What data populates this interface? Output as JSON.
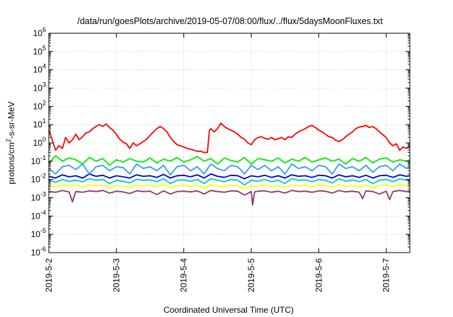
{
  "chart_data": {
    "type": "line",
    "title": "/data/run/goesPlots/archive/2019-05-07/08:00/flux/../flux/5daysMoonFluxes.txt",
    "xlabel": "Coordinated Universal Time (UTC)",
    "ylabel_base": "protons/cm",
    "ylabel_sup": "2",
    "ylabel_rest": "-s-sr-MeV",
    "x_tick_labels": [
      "2019-5-2",
      "2019-5-3",
      "2019-5-4",
      "2019-5-5",
      "2019-5-6",
      "2019-5-7"
    ],
    "y_scale": "log",
    "ylim": [
      1e-06,
      1000000.0
    ],
    "y_tick_exponents": [
      -6,
      -5,
      -4,
      -3,
      -2,
      -1,
      0,
      1,
      2,
      3,
      4,
      5,
      6
    ],
    "y_tick_base": "10",
    "xlim_days": [
      0,
      5.35
    ],
    "grid": true,
    "series": [
      {
        "color": "#ff0000",
        "x": [
          0,
          0.05,
          0.1,
          0.15,
          0.2,
          0.25,
          0.3,
          0.35,
          0.4,
          0.45,
          0.5,
          0.55,
          0.6,
          0.65,
          0.7,
          0.75,
          0.8,
          0.85,
          0.9,
          0.95,
          1.0,
          1.05,
          1.1,
          1.15,
          1.2,
          1.25,
          1.3,
          1.35,
          1.4,
          1.45,
          1.5,
          1.55,
          1.6,
          1.65,
          1.7,
          1.75,
          1.8,
          1.85,
          1.9,
          1.95,
          2.0,
          2.05,
          2.1,
          2.15,
          2.2,
          2.25,
          2.3,
          2.35,
          2.38,
          2.4,
          2.45,
          2.5,
          2.55,
          2.6,
          2.65,
          2.7,
          2.75,
          2.8,
          2.85,
          2.9,
          2.95,
          3.0,
          3.05,
          3.1,
          3.15,
          3.2,
          3.25,
          3.3,
          3.35,
          3.4,
          3.45,
          3.5,
          3.55,
          3.6,
          3.65,
          3.7,
          3.75,
          3.8,
          3.85,
          3.9,
          3.95,
          4.0,
          4.05,
          4.1,
          4.15,
          4.2,
          4.25,
          4.3,
          4.35,
          4.4,
          4.45,
          4.5,
          4.55,
          4.6,
          4.65,
          4.7,
          4.75,
          4.8,
          4.85,
          4.9,
          4.95,
          5.0,
          5.05,
          5.1,
          5.15,
          5.2,
          5.25,
          5.3,
          5.35
        ],
        "y": [
          5,
          1.5,
          0.4,
          0.7,
          0.5,
          2.0,
          1.0,
          1.5,
          3.0,
          1.5,
          2.2,
          3.5,
          4.0,
          6.0,
          8.0,
          10,
          8.0,
          11,
          7.0,
          5.0,
          3.0,
          1.6,
          1.1,
          0.9,
          0.5,
          1.0,
          0.7,
          0.9,
          1.2,
          1.6,
          2.6,
          4.0,
          6.0,
          8.0,
          6.0,
          4.0,
          2.0,
          1.2,
          0.8,
          0.7,
          0.6,
          0.5,
          0.45,
          0.4,
          0.35,
          0.35,
          0.3,
          0.3,
          5.0,
          6.0,
          4.0,
          6.0,
          12,
          8.0,
          6.0,
          5.0,
          4.0,
          3.0,
          2.0,
          1.6,
          1.0,
          0.8,
          1.5,
          2.0,
          2.2,
          1.8,
          1.6,
          2.0,
          1.5,
          1.7,
          2.0,
          1.5,
          2.2,
          2.0,
          3.0,
          4.0,
          5.0,
          6.0,
          8.0,
          9.0,
          7.0,
          5.0,
          4.0,
          3.0,
          2.2,
          2.0,
          1.4,
          1.2,
          1.5,
          2.2,
          3.0,
          4.0,
          6.0,
          7.5,
          8.0,
          9.0,
          7.0,
          8.0,
          6.0,
          4.0,
          2.8,
          2.0,
          1.0,
          0.7,
          0.9,
          0.4,
          0.6,
          0.5,
          0.7
        ]
      },
      {
        "color": "#00ee00",
        "x": [
          0,
          0.1,
          0.2,
          0.3,
          0.4,
          0.5,
          0.6,
          0.7,
          0.8,
          0.9,
          1.0,
          1.1,
          1.2,
          1.3,
          1.4,
          1.5,
          1.6,
          1.7,
          1.8,
          1.9,
          2.0,
          2.1,
          2.2,
          2.3,
          2.4,
          2.5,
          2.6,
          2.7,
          2.8,
          2.9,
          3.0,
          3.1,
          3.2,
          3.3,
          3.4,
          3.5,
          3.6,
          3.7,
          3.8,
          3.9,
          4.0,
          4.1,
          4.2,
          4.3,
          4.4,
          4.5,
          4.6,
          4.7,
          4.8,
          4.9,
          5.0,
          5.1,
          5.2,
          5.3,
          5.35
        ],
        "y": [
          0.08,
          0.2,
          0.1,
          0.15,
          0.12,
          0.07,
          0.16,
          0.1,
          0.14,
          0.06,
          0.12,
          0.09,
          0.14,
          0.1,
          0.09,
          0.15,
          0.08,
          0.13,
          0.1,
          0.16,
          0.09,
          0.12,
          0.18,
          0.1,
          0.14,
          0.07,
          0.15,
          0.11,
          0.09,
          0.16,
          0.07,
          0.14,
          0.12,
          0.1,
          0.15,
          0.08,
          0.13,
          0.1,
          0.16,
          0.09,
          0.12,
          0.15,
          0.1,
          0.13,
          0.07,
          0.14,
          0.1,
          0.16,
          0.08,
          0.13,
          0.15,
          0.09,
          0.12,
          0.1,
          0.12
        ]
      },
      {
        "color": "#3399ff",
        "x": [
          0,
          0.1,
          0.2,
          0.3,
          0.4,
          0.5,
          0.6,
          0.7,
          0.8,
          0.9,
          1.0,
          1.1,
          1.2,
          1.3,
          1.4,
          1.5,
          1.6,
          1.7,
          1.8,
          1.9,
          2.0,
          2.1,
          2.2,
          2.3,
          2.4,
          2.5,
          2.6,
          2.7,
          2.8,
          2.9,
          3.0,
          3.1,
          3.2,
          3.3,
          3.4,
          3.5,
          3.6,
          3.7,
          3.8,
          3.9,
          4.0,
          4.1,
          4.2,
          4.3,
          4.4,
          4.5,
          4.6,
          4.7,
          4.8,
          4.9,
          5.0,
          5.1,
          5.2,
          5.3,
          5.35
        ],
        "y": [
          0.04,
          0.02,
          0.05,
          0.06,
          0.035,
          0.07,
          0.02,
          0.05,
          0.06,
          0.03,
          0.05,
          0.045,
          0.02,
          0.07,
          0.04,
          0.05,
          0.03,
          0.06,
          0.018,
          0.05,
          0.06,
          0.03,
          0.05,
          0.02,
          0.07,
          0.04,
          0.03,
          0.06,
          0.05,
          0.02,
          0.06,
          0.035,
          0.06,
          0.03,
          0.05,
          0.02,
          0.07,
          0.04,
          0.05,
          0.03,
          0.06,
          0.05,
          0.02,
          0.07,
          0.04,
          0.05,
          0.03,
          0.06,
          0.025,
          0.05,
          0.06,
          0.03,
          0.07,
          0.04,
          0.05
        ]
      },
      {
        "color": "#0000cc",
        "x": [
          0,
          0.1,
          0.2,
          0.3,
          0.4,
          0.5,
          0.6,
          0.7,
          0.8,
          0.9,
          1.0,
          1.1,
          1.2,
          1.3,
          1.4,
          1.5,
          1.6,
          1.7,
          1.8,
          1.9,
          2.0,
          2.1,
          2.2,
          2.3,
          2.4,
          2.5,
          2.6,
          2.7,
          2.8,
          2.9,
          3.0,
          3.1,
          3.2,
          3.3,
          3.4,
          3.5,
          3.6,
          3.7,
          3.8,
          3.9,
          4.0,
          4.1,
          4.2,
          4.3,
          4.4,
          4.5,
          4.6,
          4.7,
          4.8,
          4.9,
          5.0,
          5.1,
          5.2,
          5.3,
          5.35
        ],
        "y": [
          0.015,
          0.012,
          0.018,
          0.014,
          0.016,
          0.012,
          0.02,
          0.015,
          0.017,
          0.012,
          0.016,
          0.014,
          0.012,
          0.018,
          0.015,
          0.016,
          0.013,
          0.019,
          0.012,
          0.016,
          0.017,
          0.014,
          0.018,
          0.012,
          0.02,
          0.015,
          0.013,
          0.017,
          0.016,
          0.011,
          0.016,
          0.014,
          0.017,
          0.013,
          0.016,
          0.012,
          0.018,
          0.015,
          0.016,
          0.013,
          0.017,
          0.016,
          0.012,
          0.018,
          0.014,
          0.016,
          0.013,
          0.017,
          0.012,
          0.016,
          0.017,
          0.013,
          0.018,
          0.015,
          0.016
        ]
      },
      {
        "color": "#00cccc",
        "x": [
          0,
          0.1,
          0.2,
          0.3,
          0.4,
          0.5,
          0.6,
          0.7,
          0.8,
          0.9,
          1.0,
          1.1,
          1.2,
          1.3,
          1.4,
          1.5,
          1.6,
          1.7,
          1.8,
          1.9,
          2.0,
          2.1,
          2.2,
          2.3,
          2.4,
          2.5,
          2.6,
          2.7,
          2.8,
          2.9,
          3.0,
          3.1,
          3.2,
          3.3,
          3.4,
          3.5,
          3.6,
          3.7,
          3.8,
          3.9,
          4.0,
          4.1,
          4.2,
          4.3,
          4.4,
          4.5,
          4.6,
          4.7,
          4.8,
          4.9,
          5.0,
          5.1,
          5.2,
          5.3,
          5.35
        ],
        "y": [
          0.009,
          0.007,
          0.01,
          0.008,
          0.009,
          0.0075,
          0.011,
          0.009,
          0.01,
          0.006,
          0.009,
          0.008,
          0.0065,
          0.01,
          0.009,
          0.0095,
          0.0075,
          0.011,
          0.006,
          0.009,
          0.0095,
          0.008,
          0.01,
          0.006,
          0.011,
          0.009,
          0.0075,
          0.01,
          0.009,
          0.005,
          0.009,
          0.008,
          0.01,
          0.0075,
          0.009,
          0.006,
          0.011,
          0.009,
          0.0095,
          0.0075,
          0.01,
          0.009,
          0.0065,
          0.011,
          0.008,
          0.0095,
          0.0075,
          0.01,
          0.006,
          0.009,
          0.01,
          0.0075,
          0.011,
          0.009,
          0.0095
        ]
      },
      {
        "color": "#ffff00",
        "x": [
          0,
          0.1,
          0.2,
          0.3,
          0.4,
          0.5,
          0.6,
          0.7,
          0.8,
          0.9,
          1.0,
          1.1,
          1.2,
          1.3,
          1.4,
          1.5,
          1.6,
          1.7,
          1.8,
          1.9,
          2.0,
          2.1,
          2.2,
          2.3,
          2.4,
          2.5,
          2.6,
          2.7,
          2.8,
          2.9,
          3.0,
          3.1,
          3.2,
          3.3,
          3.4,
          3.5,
          3.6,
          3.7,
          3.8,
          3.9,
          4.0,
          4.1,
          4.2,
          4.3,
          4.4,
          4.5,
          4.6,
          4.7,
          4.8,
          4.9,
          5.0,
          5.1,
          5.2,
          5.3,
          5.35
        ],
        "y": [
          0.0045,
          0.004,
          0.005,
          0.0042,
          0.0048,
          0.0038,
          0.0052,
          0.0044,
          0.005,
          0.0035,
          0.0046,
          0.0042,
          0.0036,
          0.005,
          0.0045,
          0.0048,
          0.004,
          0.0052,
          0.0035,
          0.0046,
          0.0048,
          0.0042,
          0.005,
          0.0034,
          0.0053,
          0.0045,
          0.004,
          0.005,
          0.0046,
          0.003,
          0.0046,
          0.0042,
          0.005,
          0.004,
          0.0046,
          0.0035,
          0.0052,
          0.0045,
          0.0048,
          0.004,
          0.005,
          0.0046,
          0.0036,
          0.0052,
          0.0042,
          0.0048,
          0.004,
          0.005,
          0.0035,
          0.0046,
          0.005,
          0.004,
          0.0052,
          0.0045,
          0.0048
        ]
      },
      {
        "color": "#8e3a6e",
        "x": [
          0,
          0.1,
          0.2,
          0.3,
          0.35,
          0.4,
          0.5,
          0.6,
          0.7,
          0.8,
          0.9,
          1.0,
          1.1,
          1.2,
          1.3,
          1.4,
          1.5,
          1.6,
          1.7,
          1.8,
          1.9,
          2.0,
          2.1,
          2.2,
          2.3,
          2.4,
          2.5,
          2.6,
          2.7,
          2.8,
          2.9,
          3.0,
          3.02,
          3.05,
          3.1,
          3.2,
          3.3,
          3.4,
          3.5,
          3.6,
          3.7,
          3.8,
          3.9,
          4.0,
          4.1,
          4.2,
          4.3,
          4.4,
          4.5,
          4.6,
          4.65,
          4.7,
          4.8,
          4.9,
          5.0,
          5.05,
          5.1,
          5.2,
          5.3,
          5.35
        ],
        "y": [
          0.0022,
          0.002,
          0.0025,
          0.0021,
          0.0006,
          0.0022,
          0.002,
          0.0024,
          0.0022,
          0.0025,
          0.0018,
          0.0023,
          0.0021,
          0.0017,
          0.0024,
          0.0022,
          0.0023,
          0.0015,
          0.0024,
          0.0016,
          0.0022,
          0.0023,
          0.0021,
          0.0024,
          0.0016,
          0.0025,
          0.0022,
          0.002,
          0.0024,
          0.0023,
          0.0014,
          0.0022,
          0.0004,
          0.0021,
          0.0023,
          0.0024,
          0.002,
          0.0023,
          0.0018,
          0.0025,
          0.0022,
          0.0023,
          0.002,
          0.0024,
          0.0023,
          0.0018,
          0.0025,
          0.0021,
          0.0023,
          0.002,
          0.0009,
          0.0024,
          0.0022,
          0.0016,
          0.0023,
          0.0008,
          0.0022,
          0.0025,
          0.0022,
          0.0024
        ]
      }
    ]
  }
}
